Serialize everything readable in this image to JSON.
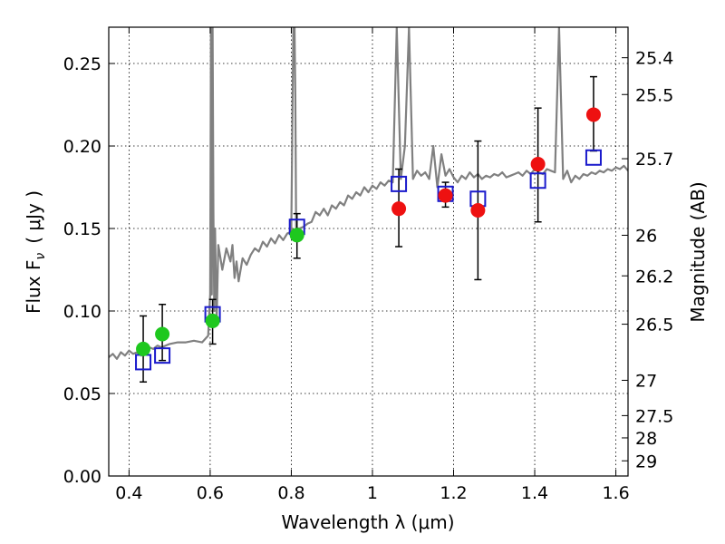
{
  "chart_data": {
    "type": "scatter",
    "title": "",
    "xlabel": "Wavelength  λ (μm)",
    "ylabel": "Flux  F",
    "ylabel_sub": "ν",
    "ylabel_unit": "( μJy )",
    "y2label": "Magnitude (AB)",
    "xlim": [
      0.35,
      1.63
    ],
    "ylim": [
      0.0,
      0.272
    ],
    "grid": true,
    "x_ticks": [
      0.4,
      0.6,
      0.8,
      1.0,
      1.2,
      1.4,
      1.6
    ],
    "x_tick_labels": [
      "0.4",
      "0.6",
      "0.8",
      "1",
      "1.2",
      "1.4",
      "1.6"
    ],
    "y_ticks": [
      0.0,
      0.05,
      0.1,
      0.15,
      0.2,
      0.25
    ],
    "y_tick_labels": [
      "0.00",
      "0.05",
      "0.10",
      "0.15",
      "0.20",
      "0.25"
    ],
    "mag_ticks": [
      {
        "label": "25.4",
        "flux": 0.2535
      },
      {
        "label": "25.5",
        "flux": 0.2312
      },
      {
        "label": "25.7",
        "flux": 0.1923
      },
      {
        "label": "26",
        "flux": 0.1459
      },
      {
        "label": "26.2",
        "flux": 0.1213
      },
      {
        "label": "26.5",
        "flux": 0.092
      },
      {
        "label": "27",
        "flux": 0.058
      },
      {
        "label": "27.5",
        "flux": 0.0366
      },
      {
        "label": "28",
        "flux": 0.0231
      },
      {
        "label": "29",
        "flux": 0.0092
      }
    ],
    "series": [
      {
        "name": "model spectrum",
        "kind": "line",
        "color": "#808080",
        "x": [
          0.35,
          0.36,
          0.37,
          0.38,
          0.39,
          0.4,
          0.41,
          0.42,
          0.43,
          0.44,
          0.45,
          0.46,
          0.47,
          0.48,
          0.5,
          0.52,
          0.54,
          0.56,
          0.58,
          0.595,
          0.6,
          0.602,
          0.604,
          0.606,
          0.608,
          0.61,
          0.612,
          0.614,
          0.616,
          0.62,
          0.63,
          0.64,
          0.65,
          0.655,
          0.66,
          0.665,
          0.67,
          0.68,
          0.69,
          0.7,
          0.71,
          0.72,
          0.73,
          0.74,
          0.75,
          0.76,
          0.77,
          0.78,
          0.79,
          0.8,
          0.805,
          0.808,
          0.81,
          0.812,
          0.815,
          0.82,
          0.83,
          0.84,
          0.85,
          0.86,
          0.87,
          0.88,
          0.89,
          0.9,
          0.91,
          0.92,
          0.93,
          0.94,
          0.95,
          0.96,
          0.97,
          0.98,
          0.99,
          1.0,
          1.01,
          1.02,
          1.03,
          1.04,
          1.05,
          1.06,
          1.07,
          1.08,
          1.09,
          1.1,
          1.11,
          1.12,
          1.13,
          1.14,
          1.15,
          1.16,
          1.17,
          1.18,
          1.19,
          1.2,
          1.21,
          1.22,
          1.23,
          1.24,
          1.25,
          1.26,
          1.27,
          1.28,
          1.29,
          1.3,
          1.31,
          1.32,
          1.33,
          1.34,
          1.35,
          1.36,
          1.37,
          1.38,
          1.39,
          1.4,
          1.41,
          1.42,
          1.43,
          1.44,
          1.45,
          1.46,
          1.47,
          1.48,
          1.49,
          1.5,
          1.51,
          1.52,
          1.53,
          1.54,
          1.55,
          1.56,
          1.57,
          1.58,
          1.59,
          1.6,
          1.61,
          1.62,
          1.63
        ],
        "y": [
          0.072,
          0.074,
          0.071,
          0.075,
          0.073,
          0.076,
          0.074,
          0.075,
          0.073,
          0.076,
          0.078,
          0.077,
          0.079,
          0.078,
          0.08,
          0.081,
          0.081,
          0.082,
          0.081,
          0.085,
          0.11,
          0.272,
          0.11,
          0.272,
          0.16,
          0.1,
          0.15,
          0.12,
          0.095,
          0.14,
          0.125,
          0.138,
          0.13,
          0.14,
          0.12,
          0.13,
          0.118,
          0.132,
          0.128,
          0.134,
          0.138,
          0.136,
          0.142,
          0.139,
          0.144,
          0.141,
          0.146,
          0.143,
          0.147,
          0.148,
          0.272,
          0.272,
          0.23,
          0.148,
          0.15,
          0.15,
          0.151,
          0.153,
          0.154,
          0.16,
          0.158,
          0.162,
          0.158,
          0.164,
          0.162,
          0.166,
          0.164,
          0.17,
          0.168,
          0.172,
          0.17,
          0.175,
          0.172,
          0.176,
          0.174,
          0.178,
          0.176,
          0.179,
          0.178,
          0.272,
          0.18,
          0.2,
          0.272,
          0.18,
          0.185,
          0.182,
          0.184,
          0.18,
          0.2,
          0.175,
          0.195,
          0.182,
          0.186,
          0.181,
          0.178,
          0.182,
          0.18,
          0.184,
          0.181,
          0.183,
          0.18,
          0.182,
          0.181,
          0.183,
          0.182,
          0.184,
          0.181,
          0.182,
          0.183,
          0.184,
          0.182,
          0.185,
          0.183,
          0.186,
          0.184,
          0.183,
          0.186,
          0.185,
          0.184,
          0.272,
          0.18,
          0.185,
          0.178,
          0.182,
          0.18,
          0.183,
          0.182,
          0.184,
          0.183,
          0.185,
          0.184,
          0.186,
          0.185,
          0.187,
          0.186,
          0.188,
          0.185
        ]
      },
      {
        "name": "green photometry",
        "kind": "points",
        "color": "#1ec81e",
        "x": [
          0.435,
          0.482,
          0.606,
          0.814
        ],
        "y": [
          0.077,
          0.086,
          0.094,
          0.146
        ],
        "yerr_lo": [
          0.057,
          0.07,
          0.08,
          0.132
        ],
        "yerr_hi": [
          0.097,
          0.104,
          0.107,
          0.159
        ]
      },
      {
        "name": "red photometry",
        "kind": "points",
        "color": "#ee1111",
        "x": [
          1.065,
          1.18,
          1.26,
          1.408,
          1.545
        ],
        "y": [
          0.162,
          0.17,
          0.161,
          0.189,
          0.219
        ],
        "yerr_lo": [
          0.139,
          0.163,
          0.119,
          0.154,
          0.197
        ],
        "yerr_hi": [
          0.186,
          0.178,
          0.203,
          0.223,
          0.242
        ]
      },
      {
        "name": "model photometry",
        "kind": "open-squares",
        "color": "#1a1acc",
        "x": [
          0.435,
          0.482,
          0.606,
          0.814,
          1.065,
          1.18,
          1.26,
          1.408,
          1.545
        ],
        "y": [
          0.069,
          0.073,
          0.098,
          0.151,
          0.177,
          0.171,
          0.168,
          0.179,
          0.193
        ]
      }
    ]
  }
}
